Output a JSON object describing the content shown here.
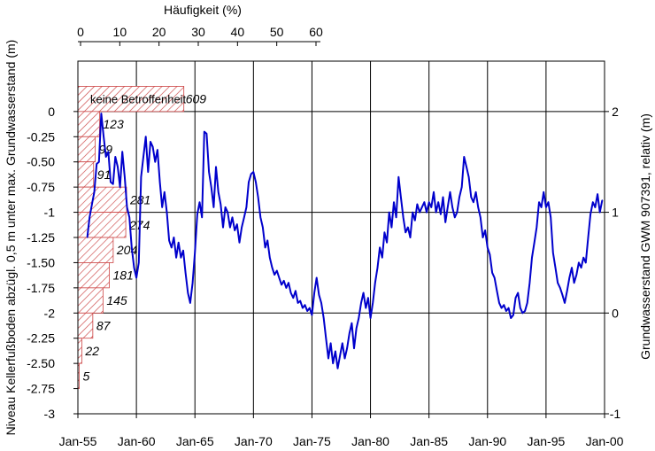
{
  "chart_data": {
    "type": "line",
    "top_axis": {
      "label": "Häufigkeit (%)",
      "ticks": [
        "0",
        "10",
        "20",
        "30",
        "40",
        "50",
        "60"
      ],
      "values": [
        0,
        10,
        20,
        30,
        40,
        50,
        60
      ]
    },
    "left_axis": {
      "label": "Niveau Kellerfußboden abzügl. 0,5 m unter max. Grundwasserstand (m)",
      "ticks": [
        "0",
        "-0.25",
        "-0.50",
        "-0.75",
        "-1",
        "-1.25",
        "-1.50",
        "-1.75",
        "-2",
        "-2.25",
        "-2.50",
        "-2.75",
        "-3"
      ],
      "values": [
        0,
        -0.25,
        -0.5,
        -0.75,
        -1,
        -1.25,
        -1.5,
        -1.75,
        -2,
        -2.25,
        -2.5,
        -2.75,
        -3
      ],
      "ylim": [
        -3,
        0.5
      ]
    },
    "right_axis": {
      "label": "Grundwasserstand GWM 907391, relativ (m)",
      "ticks": [
        "2",
        "1",
        "0",
        "-1"
      ],
      "values": [
        2,
        1,
        0,
        -1
      ],
      "ylim": [
        -1,
        2.5
      ]
    },
    "x_axis": {
      "ticks": [
        "Jan-55",
        "Jan-60",
        "Jan-65",
        "Jan-70",
        "Jan-75",
        "Jan-80",
        "Jan-85",
        "Jan-90",
        "Jan-95",
        "Jan-00"
      ],
      "values": [
        1955,
        1960,
        1965,
        1970,
        1975,
        1980,
        1985,
        1990,
        1995,
        2000
      ],
      "xlim": [
        1955,
        2000
      ]
    },
    "grid": true,
    "histogram": {
      "label": "keine Betroffenheit",
      "bars": [
        {
          "level": 0.125,
          "percent": 27,
          "count": "609"
        },
        {
          "level": -0.125,
          "percent": 5.5,
          "count": "123"
        },
        {
          "level": -0.375,
          "percent": 4.4,
          "count": "99"
        },
        {
          "level": -0.625,
          "percent": 4.0,
          "count": "91"
        },
        {
          "level": -0.875,
          "percent": 12.4,
          "count": "281"
        },
        {
          "level": -1.125,
          "percent": 12.2,
          "count": "274"
        },
        {
          "level": -1.375,
          "percent": 9.0,
          "count": "204"
        },
        {
          "level": -1.625,
          "percent": 8.0,
          "count": "181"
        },
        {
          "level": -1.875,
          "percent": 6.4,
          "count": "145"
        },
        {
          "level": -2.125,
          "percent": 3.8,
          "count": "87"
        },
        {
          "level": -2.375,
          "percent": 1.0,
          "count": "22"
        },
        {
          "level": -2.625,
          "percent": 0.2,
          "count": "5"
        }
      ]
    },
    "series": [
      {
        "color": "#0000cc",
        "points": [
          [
            1955.8,
            0.75
          ],
          [
            1956.0,
            0.95
          ],
          [
            1956.2,
            1.08
          ],
          [
            1956.4,
            1.2
          ],
          [
            1956.6,
            1.48
          ],
          [
            1956.8,
            1.5
          ],
          [
            1957.0,
            1.98
          ],
          [
            1957.2,
            1.75
          ],
          [
            1957.4,
            1.55
          ],
          [
            1957.6,
            1.6
          ],
          [
            1957.8,
            1.3
          ],
          [
            1958.0,
            1.28
          ],
          [
            1958.2,
            1.55
          ],
          [
            1958.4,
            1.45
          ],
          [
            1958.6,
            1.25
          ],
          [
            1958.8,
            1.6
          ],
          [
            1959.0,
            1.35
          ],
          [
            1959.2,
            1.05
          ],
          [
            1959.4,
            0.95
          ],
          [
            1959.6,
            0.65
          ],
          [
            1959.8,
            0.45
          ],
          [
            1960.0,
            0.35
          ],
          [
            1960.2,
            0.5
          ],
          [
            1960.4,
            1.35
          ],
          [
            1960.6,
            1.55
          ],
          [
            1960.8,
            1.75
          ],
          [
            1961.0,
            1.4
          ],
          [
            1961.2,
            1.7
          ],
          [
            1961.4,
            1.65
          ],
          [
            1961.6,
            1.5
          ],
          [
            1961.8,
            1.62
          ],
          [
            1962.0,
            1.3
          ],
          [
            1962.2,
            1.05
          ],
          [
            1962.4,
            1.2
          ],
          [
            1962.6,
            1.0
          ],
          [
            1962.8,
            0.72
          ],
          [
            1963.0,
            0.65
          ],
          [
            1963.2,
            0.75
          ],
          [
            1963.4,
            0.55
          ],
          [
            1963.6,
            0.7
          ],
          [
            1963.8,
            0.55
          ],
          [
            1964.0,
            0.62
          ],
          [
            1964.2,
            0.4
          ],
          [
            1964.4,
            0.2
          ],
          [
            1964.6,
            0.1
          ],
          [
            1964.8,
            0.3
          ],
          [
            1965.0,
            0.6
          ],
          [
            1965.2,
            0.98
          ],
          [
            1965.4,
            1.1
          ],
          [
            1965.6,
            0.95
          ],
          [
            1965.8,
            1.8
          ],
          [
            1966.0,
            1.78
          ],
          [
            1966.2,
            1.4
          ],
          [
            1966.4,
            1.25
          ],
          [
            1966.6,
            1.05
          ],
          [
            1966.8,
            1.45
          ],
          [
            1967.0,
            1.2
          ],
          [
            1967.2,
            1.08
          ],
          [
            1967.4,
            0.85
          ],
          [
            1967.6,
            1.05
          ],
          [
            1967.8,
            1.0
          ],
          [
            1968.0,
            0.85
          ],
          [
            1968.2,
            0.95
          ],
          [
            1968.4,
            0.82
          ],
          [
            1968.6,
            0.88
          ],
          [
            1968.8,
            0.7
          ],
          [
            1969.0,
            0.85
          ],
          [
            1969.2,
            0.95
          ],
          [
            1969.4,
            1.05
          ],
          [
            1969.6,
            1.3
          ],
          [
            1969.8,
            1.38
          ],
          [
            1970.0,
            1.4
          ],
          [
            1970.2,
            1.3
          ],
          [
            1970.4,
            1.15
          ],
          [
            1970.6,
            0.95
          ],
          [
            1970.8,
            0.85
          ],
          [
            1971.0,
            0.65
          ],
          [
            1971.2,
            0.72
          ],
          [
            1971.4,
            0.55
          ],
          [
            1971.6,
            0.45
          ],
          [
            1971.8,
            0.38
          ],
          [
            1972.0,
            0.42
          ],
          [
            1972.2,
            0.35
          ],
          [
            1972.4,
            0.28
          ],
          [
            1972.6,
            0.32
          ],
          [
            1972.8,
            0.25
          ],
          [
            1973.0,
            0.3
          ],
          [
            1973.2,
            0.2
          ],
          [
            1973.4,
            0.15
          ],
          [
            1973.6,
            0.22
          ],
          [
            1973.8,
            0.1
          ],
          [
            1974.0,
            0.12
          ],
          [
            1974.2,
            0.05
          ],
          [
            1974.4,
            0.08
          ],
          [
            1974.6,
            0.02
          ],
          [
            1974.8,
            0.05
          ],
          [
            1975.0,
            -0.02
          ],
          [
            1975.2,
            0.2
          ],
          [
            1975.4,
            0.35
          ],
          [
            1975.6,
            0.18
          ],
          [
            1975.8,
            0.1
          ],
          [
            1976.0,
            -0.05
          ],
          [
            1976.2,
            -0.25
          ],
          [
            1976.4,
            -0.45
          ],
          [
            1976.6,
            -0.3
          ],
          [
            1976.8,
            -0.5
          ],
          [
            1977.0,
            -0.38
          ],
          [
            1977.2,
            -0.55
          ],
          [
            1977.4,
            -0.42
          ],
          [
            1977.6,
            -0.3
          ],
          [
            1977.8,
            -0.45
          ],
          [
            1978.0,
            -0.35
          ],
          [
            1978.2,
            -0.2
          ],
          [
            1978.4,
            -0.1
          ],
          [
            1978.6,
            -0.35
          ],
          [
            1978.8,
            -0.15
          ],
          [
            1979.0,
            -0.05
          ],
          [
            1979.2,
            0.1
          ],
          [
            1979.4,
            0.2
          ],
          [
            1979.6,
            0.05
          ],
          [
            1979.8,
            0.15
          ],
          [
            1980.0,
            -0.05
          ],
          [
            1980.2,
            0.1
          ],
          [
            1980.4,
            0.3
          ],
          [
            1980.6,
            0.45
          ],
          [
            1980.8,
            0.65
          ],
          [
            1981.0,
            0.55
          ],
          [
            1981.2,
            0.8
          ],
          [
            1981.4,
            0.7
          ],
          [
            1981.6,
            1.0
          ],
          [
            1981.8,
            0.85
          ],
          [
            1982.0,
            1.1
          ],
          [
            1982.2,
            0.95
          ],
          [
            1982.4,
            1.35
          ],
          [
            1982.6,
            1.15
          ],
          [
            1982.8,
            0.95
          ],
          [
            1983.0,
            0.8
          ],
          [
            1983.2,
            0.85
          ],
          [
            1983.4,
            0.75
          ],
          [
            1983.6,
            1.0
          ],
          [
            1983.8,
            0.92
          ],
          [
            1984.0,
            1.08
          ],
          [
            1984.2,
            1.0
          ],
          [
            1984.4,
            1.05
          ],
          [
            1984.6,
            1.1
          ],
          [
            1984.8,
            1.0
          ],
          [
            1985.0,
            1.1
          ],
          [
            1985.2,
            1.05
          ],
          [
            1985.4,
            1.2
          ],
          [
            1985.6,
            1.0
          ],
          [
            1985.8,
            1.1
          ],
          [
            1986.0,
            0.98
          ],
          [
            1986.2,
            1.15
          ],
          [
            1986.4,
            0.9
          ],
          [
            1986.6,
            1.05
          ],
          [
            1986.8,
            1.2
          ],
          [
            1987.0,
            1.05
          ],
          [
            1987.2,
            0.95
          ],
          [
            1987.4,
            1.0
          ],
          [
            1987.6,
            1.15
          ],
          [
            1987.8,
            1.25
          ],
          [
            1988.0,
            1.55
          ],
          [
            1988.2,
            1.45
          ],
          [
            1988.4,
            1.35
          ],
          [
            1988.6,
            1.15
          ],
          [
            1988.8,
            1.1
          ],
          [
            1989.0,
            1.2
          ],
          [
            1989.2,
            1.05
          ],
          [
            1989.4,
            0.95
          ],
          [
            1989.6,
            0.75
          ],
          [
            1989.8,
            0.82
          ],
          [
            1990.0,
            0.65
          ],
          [
            1990.2,
            0.58
          ],
          [
            1990.4,
            0.4
          ],
          [
            1990.6,
            0.35
          ],
          [
            1990.8,
            0.22
          ],
          [
            1991.0,
            0.1
          ],
          [
            1991.2,
            0.05
          ],
          [
            1991.4,
            0.08
          ],
          [
            1991.6,
            0.02
          ],
          [
            1991.8,
            0.05
          ],
          [
            1992.0,
            -0.05
          ],
          [
            1992.2,
            -0.02
          ],
          [
            1992.4,
            0.15
          ],
          [
            1992.6,
            0.2
          ],
          [
            1992.8,
            0.05
          ],
          [
            1993.0,
            0.0
          ],
          [
            1993.2,
            0.02
          ],
          [
            1993.4,
            0.1
          ],
          [
            1993.6,
            0.3
          ],
          [
            1993.8,
            0.55
          ],
          [
            1994.0,
            0.7
          ],
          [
            1994.2,
            0.85
          ],
          [
            1994.4,
            1.1
          ],
          [
            1994.6,
            1.05
          ],
          [
            1994.8,
            1.2
          ],
          [
            1995.0,
            1.05
          ],
          [
            1995.2,
            1.1
          ],
          [
            1995.4,
            0.95
          ],
          [
            1995.6,
            0.6
          ],
          [
            1995.8,
            0.45
          ],
          [
            1996.0,
            0.3
          ],
          [
            1996.2,
            0.25
          ],
          [
            1996.4,
            0.18
          ],
          [
            1996.6,
            0.1
          ],
          [
            1996.8,
            0.22
          ],
          [
            1997.0,
            0.35
          ],
          [
            1997.2,
            0.45
          ],
          [
            1997.4,
            0.3
          ],
          [
            1997.6,
            0.38
          ],
          [
            1997.8,
            0.5
          ],
          [
            1998.0,
            0.45
          ],
          [
            1998.2,
            0.55
          ],
          [
            1998.4,
            0.5
          ],
          [
            1998.6,
            0.75
          ],
          [
            1998.8,
            0.98
          ],
          [
            1999.0,
            1.1
          ],
          [
            1999.2,
            1.05
          ],
          [
            1999.4,
            1.18
          ],
          [
            1999.6,
            1.0
          ],
          [
            1999.8,
            1.12
          ]
        ]
      }
    ]
  }
}
